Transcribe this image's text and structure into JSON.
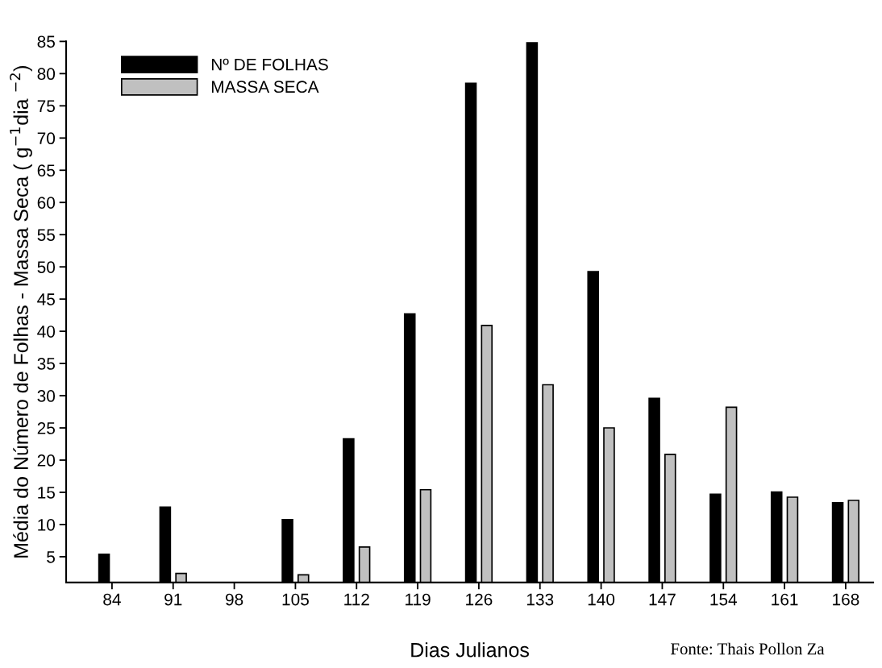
{
  "chart_data": {
    "type": "bar",
    "xlabel": "Dias Julianos",
    "ylabel": "Média do Número de Folhas - Massa Seca ( g$^{−1}$dia $^{−2}$)",
    "categories": [
      "84",
      "91",
      "98",
      "105",
      "112",
      "119",
      "126",
      "133",
      "140",
      "147",
      "154",
      "161",
      "168"
    ],
    "series": [
      {
        "name": "Nº DE FOLHAS",
        "color": "#000000",
        "values": [
          5.4,
          12.7,
          null,
          10.75,
          23.3,
          42.7,
          78.5,
          84.8,
          49.25,
          29.6,
          14.7,
          15.05,
          13.4
        ]
      },
      {
        "name": "MASSA SECA",
        "color": "#c0c0c0",
        "values": [
          null,
          2.4,
          null,
          2.2,
          6.5,
          15.4,
          40.9,
          31.7,
          25.0,
          20.9,
          28.2,
          14.25,
          13.75
        ]
      }
    ],
    "ylim": [
      1,
      85
    ],
    "yticks": [
      5,
      10,
      15,
      20,
      25,
      30,
      35,
      40,
      45,
      50,
      55,
      60,
      65,
      70,
      75,
      80,
      85
    ],
    "legend": "top left",
    "grid": false,
    "annotations": [
      "Fonte: Thais Pollon Za"
    ]
  }
}
